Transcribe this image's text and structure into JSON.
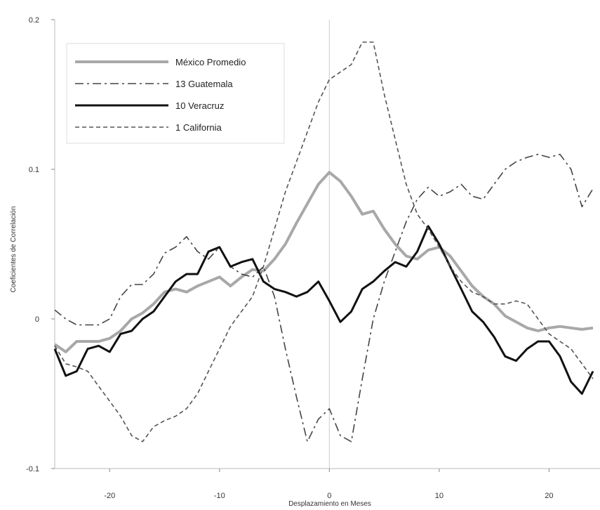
{
  "chart_data": {
    "type": "line",
    "title": "",
    "xlabel": "Desplazamiento en Meses",
    "ylabel": "Coeficientes de Correlación",
    "xlim": [
      -25,
      24
    ],
    "ylim": [
      -0.1,
      0.2
    ],
    "x_ticks": [
      -20,
      -10,
      0,
      10,
      20
    ],
    "y_ticks": [
      -0.1,
      0,
      0.1,
      0.2
    ],
    "x_tick_labels": [
      "-20",
      "-10",
      "0",
      "10",
      "20"
    ],
    "y_tick_labels": [
      "-0.1",
      "0",
      "0.1",
      "0.2"
    ],
    "x_zero_line": 0,
    "grid": false,
    "legend_position": "top-left",
    "series": [
      {
        "name": "México Promedio",
        "color": "#a8a8a8",
        "style": "solid-thick",
        "points": [
          [
            -25,
            -0.017
          ],
          [
            -24,
            -0.022
          ],
          [
            -23,
            -0.015
          ],
          [
            -22,
            -0.015
          ],
          [
            -21,
            -0.015
          ],
          [
            -20,
            -0.013
          ],
          [
            -19,
            -0.008
          ],
          [
            -18,
            0.0
          ],
          [
            -17,
            0.004
          ],
          [
            -16,
            0.01
          ],
          [
            -15,
            0.018
          ],
          [
            -14,
            0.02
          ],
          [
            -13,
            0.018
          ],
          [
            -12,
            0.022
          ],
          [
            -11,
            0.025
          ],
          [
            -10,
            0.028
          ],
          [
            -9,
            0.022
          ],
          [
            -8,
            0.028
          ],
          [
            -7,
            0.033
          ],
          [
            -6,
            0.032
          ],
          [
            -5,
            0.04
          ],
          [
            -4,
            0.05
          ],
          [
            -3,
            0.064
          ],
          [
            -2,
            0.077
          ],
          [
            -1,
            0.09
          ],
          [
            0,
            0.098
          ],
          [
            1,
            0.092
          ],
          [
            2,
            0.082
          ],
          [
            3,
            0.07
          ],
          [
            4,
            0.072
          ],
          [
            5,
            0.06
          ],
          [
            6,
            0.05
          ],
          [
            7,
            0.042
          ],
          [
            8,
            0.04
          ],
          [
            9,
            0.046
          ],
          [
            10,
            0.048
          ],
          [
            11,
            0.042
          ],
          [
            12,
            0.032
          ],
          [
            13,
            0.022
          ],
          [
            14,
            0.015
          ],
          [
            15,
            0.01
          ],
          [
            16,
            0.002
          ],
          [
            17,
            -0.002
          ],
          [
            18,
            -0.006
          ],
          [
            19,
            -0.008
          ],
          [
            20,
            -0.006
          ],
          [
            21,
            -0.005
          ],
          [
            22,
            -0.006
          ],
          [
            23,
            -0.007
          ],
          [
            24,
            -0.006
          ]
        ]
      },
      {
        "name": "13 Guatemala",
        "color": "#444444",
        "style": "dash-dot",
        "points": [
          [
            -25,
            0.006
          ],
          [
            -24,
            0.0
          ],
          [
            -23,
            -0.004
          ],
          [
            -22,
            -0.004
          ],
          [
            -21,
            -0.004
          ],
          [
            -20,
            0.0
          ],
          [
            -19,
            0.015
          ],
          [
            -18,
            0.023
          ],
          [
            -17,
            0.023
          ],
          [
            -16,
            0.03
          ],
          [
            -15,
            0.044
          ],
          [
            -14,
            0.048
          ],
          [
            -13,
            0.055
          ],
          [
            -12,
            0.045
          ],
          [
            -11,
            0.04
          ],
          [
            -10,
            0.048
          ],
          [
            -9,
            0.035
          ],
          [
            -8,
            0.03
          ],
          [
            -7,
            0.028
          ],
          [
            -6,
            0.035
          ],
          [
            -5,
            0.015
          ],
          [
            -4,
            -0.02
          ],
          [
            -3,
            -0.052
          ],
          [
            -2,
            -0.082
          ],
          [
            -1,
            -0.067
          ],
          [
            0,
            -0.06
          ],
          [
            1,
            -0.078
          ],
          [
            2,
            -0.082
          ],
          [
            3,
            -0.04
          ],
          [
            4,
            0.0
          ],
          [
            5,
            0.025
          ],
          [
            6,
            0.045
          ],
          [
            7,
            0.065
          ],
          [
            8,
            0.08
          ],
          [
            9,
            0.088
          ],
          [
            10,
            0.082
          ],
          [
            11,
            0.085
          ],
          [
            12,
            0.09
          ],
          [
            13,
            0.082
          ],
          [
            14,
            0.08
          ],
          [
            15,
            0.09
          ],
          [
            16,
            0.1
          ],
          [
            17,
            0.105
          ],
          [
            18,
            0.108
          ],
          [
            19,
            0.11
          ],
          [
            20,
            0.108
          ],
          [
            21,
            0.11
          ],
          [
            22,
            0.1
          ],
          [
            23,
            0.075
          ],
          [
            24,
            0.087
          ]
        ]
      },
      {
        "name": "10 Veracruz",
        "color": "#111111",
        "style": "solid",
        "points": [
          [
            -25,
            -0.02
          ],
          [
            -24,
            -0.038
          ],
          [
            -23,
            -0.035
          ],
          [
            -22,
            -0.02
          ],
          [
            -21,
            -0.018
          ],
          [
            -20,
            -0.022
          ],
          [
            -19,
            -0.01
          ],
          [
            -18,
            -0.008
          ],
          [
            -17,
            0.0
          ],
          [
            -16,
            0.005
          ],
          [
            -15,
            0.015
          ],
          [
            -14,
            0.025
          ],
          [
            -13,
            0.03
          ],
          [
            -12,
            0.03
          ],
          [
            -11,
            0.045
          ],
          [
            -10,
            0.048
          ],
          [
            -9,
            0.035
          ],
          [
            -8,
            0.038
          ],
          [
            -7,
            0.04
          ],
          [
            -6,
            0.025
          ],
          [
            -5,
            0.02
          ],
          [
            -4,
            0.018
          ],
          [
            -3,
            0.015
          ],
          [
            -2,
            0.018
          ],
          [
            -1,
            0.025
          ],
          [
            0,
            0.012
          ],
          [
            1,
            -0.002
          ],
          [
            2,
            0.005
          ],
          [
            3,
            0.02
          ],
          [
            4,
            0.025
          ],
          [
            5,
            0.032
          ],
          [
            6,
            0.038
          ],
          [
            7,
            0.035
          ],
          [
            8,
            0.045
          ],
          [
            9,
            0.062
          ],
          [
            10,
            0.05
          ],
          [
            11,
            0.035
          ],
          [
            12,
            0.02
          ],
          [
            13,
            0.005
          ],
          [
            14,
            -0.002
          ],
          [
            15,
            -0.012
          ],
          [
            16,
            -0.025
          ],
          [
            17,
            -0.028
          ],
          [
            18,
            -0.02
          ],
          [
            19,
            -0.015
          ],
          [
            20,
            -0.015
          ],
          [
            21,
            -0.025
          ],
          [
            22,
            -0.042
          ],
          [
            23,
            -0.05
          ],
          [
            24,
            -0.035
          ]
        ]
      },
      {
        "name": "1 California",
        "color": "#555555",
        "style": "dashed",
        "points": [
          [
            -25,
            -0.018
          ],
          [
            -24,
            -0.03
          ],
          [
            -23,
            -0.032
          ],
          [
            -22,
            -0.035
          ],
          [
            -21,
            -0.045
          ],
          [
            -20,
            -0.055
          ],
          [
            -19,
            -0.065
          ],
          [
            -18,
            -0.078
          ],
          [
            -17,
            -0.082
          ],
          [
            -16,
            -0.072
          ],
          [
            -15,
            -0.068
          ],
          [
            -14,
            -0.065
          ],
          [
            -13,
            -0.06
          ],
          [
            -12,
            -0.05
          ],
          [
            -11,
            -0.035
          ],
          [
            -10,
            -0.02
          ],
          [
            -9,
            -0.005
          ],
          [
            -8,
            0.005
          ],
          [
            -7,
            0.015
          ],
          [
            -6,
            0.035
          ],
          [
            -5,
            0.06
          ],
          [
            -4,
            0.085
          ],
          [
            -3,
            0.105
          ],
          [
            -2,
            0.125
          ],
          [
            -1,
            0.145
          ],
          [
            0,
            0.16
          ],
          [
            1,
            0.165
          ],
          [
            2,
            0.17
          ],
          [
            3,
            0.185
          ],
          [
            4,
            0.185
          ],
          [
            5,
            0.15
          ],
          [
            6,
            0.12
          ],
          [
            7,
            0.09
          ],
          [
            8,
            0.07
          ],
          [
            9,
            0.06
          ],
          [
            10,
            0.048
          ],
          [
            11,
            0.035
          ],
          [
            12,
            0.025
          ],
          [
            13,
            0.018
          ],
          [
            14,
            0.015
          ],
          [
            15,
            0.01
          ],
          [
            16,
            0.01
          ],
          [
            17,
            0.012
          ],
          [
            18,
            0.01
          ],
          [
            19,
            0.0
          ],
          [
            20,
            -0.01
          ],
          [
            21,
            -0.015
          ],
          [
            22,
            -0.02
          ],
          [
            23,
            -0.03
          ],
          [
            24,
            -0.04
          ]
        ]
      }
    ]
  }
}
